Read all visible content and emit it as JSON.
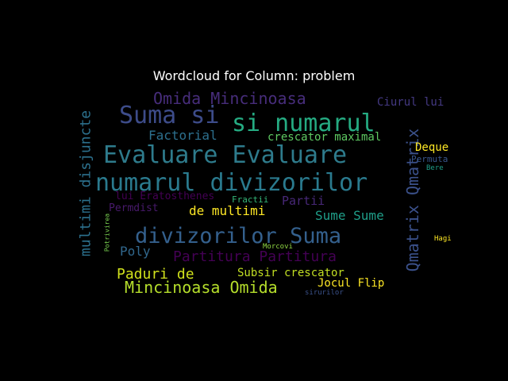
{
  "chart_data": {
    "type": "wordcloud",
    "title": "Wordcloud for Column: problem",
    "background": "#000000",
    "words": [
      {
        "text": "Evaluare Evaluare",
        "color": "#2e7b8c",
        "orientation": "horizontal"
      },
      {
        "text": "numarul divizorilor",
        "color": "#2a7a8e",
        "orientation": "horizontal"
      },
      {
        "text": "divizorilor Suma",
        "color": "#34608d",
        "orientation": "horizontal"
      },
      {
        "text": "si numarul",
        "color": "#25ab82",
        "orientation": "horizontal"
      },
      {
        "text": "Suma si",
        "color": "#3d4c8a",
        "orientation": "horizontal"
      },
      {
        "text": "Omida Mincinoasa",
        "color": "#472d7b",
        "orientation": "horizontal"
      },
      {
        "text": "Qmatrix Qmatrix",
        "color": "#3b518b",
        "orientation": "vertical"
      },
      {
        "text": "multimi disjuncte",
        "color": "#2c718e",
        "orientation": "vertical"
      },
      {
        "text": "Mincinoasa Omida",
        "color": "#b5de2b",
        "orientation": "horizontal"
      },
      {
        "text": "Partitura Partitura",
        "color": "#440154",
        "orientation": "horizontal"
      },
      {
        "text": "Paduri de",
        "color": "#d0e11c",
        "orientation": "horizontal"
      },
      {
        "text": "Factorial",
        "color": "#2d708e",
        "orientation": "horizontal"
      },
      {
        "text": "Sume Sume",
        "color": "#1f9e89",
        "orientation": "horizontal"
      },
      {
        "text": "de multimi",
        "color": "#fde725",
        "orientation": "horizontal"
      },
      {
        "text": "crescator maximal",
        "color": "#5ec962",
        "orientation": "horizontal"
      },
      {
        "text": "Ciurul lui",
        "color": "#443983",
        "orientation": "horizontal"
      },
      {
        "text": "Subsir crescator",
        "color": "#c2df23",
        "orientation": "horizontal"
      },
      {
        "text": "Jocul Flip",
        "color": "#fde725",
        "orientation": "horizontal"
      },
      {
        "text": "Poly",
        "color": "#31688e",
        "orientation": "horizontal"
      },
      {
        "text": "Partii",
        "color": "#482878",
        "orientation": "horizontal"
      },
      {
        "text": "lui Eratosthenes",
        "color": "#440154",
        "orientation": "horizontal"
      },
      {
        "text": "Deque",
        "color": "#fde725",
        "orientation": "horizontal"
      },
      {
        "text": "Permdist",
        "color": "#481a6c",
        "orientation": "horizontal"
      },
      {
        "text": "Permuta",
        "color": "#39568c",
        "orientation": "horizontal"
      },
      {
        "text": "Fractii",
        "color": "#35b779",
        "orientation": "horizontal"
      },
      {
        "text": "Bere",
        "color": "#1f9e89",
        "orientation": "horizontal"
      },
      {
        "text": "Morcovi",
        "color": "#90d743",
        "orientation": "horizontal"
      },
      {
        "text": "sirurilor",
        "color": "#3b528b",
        "orientation": "horizontal"
      },
      {
        "text": "Hagi",
        "color": "#fde725",
        "orientation": "horizontal"
      },
      {
        "text": "Potrivirea",
        "color": "#7ad151",
        "orientation": "vertical"
      }
    ]
  }
}
